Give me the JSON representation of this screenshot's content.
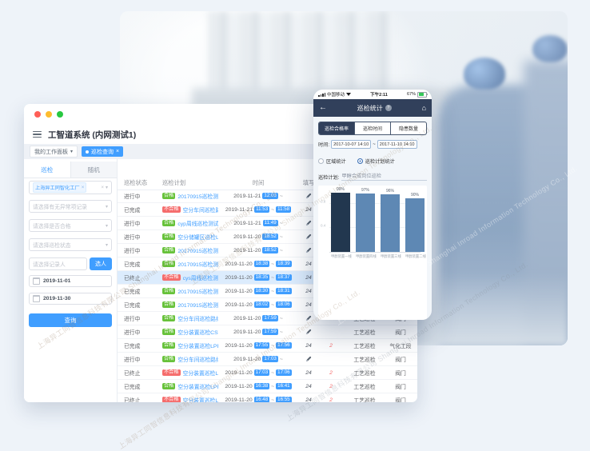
{
  "watermark": {
    "line": "上海异工同智信息科技有限公司 Shanghai Inroad Information Technology Co., Ltd."
  },
  "desktop": {
    "title": "工智道系统 (内网测试1)",
    "tabs": {
      "workspace": "我的工作面板",
      "active": "巡检查询"
    },
    "sidebar": {
      "tabs": [
        {
          "label": "巡检",
          "active": true
        },
        {
          "label": "随机",
          "active": false
        }
      ],
      "factory_tag": "上海异工同智化工厂",
      "selects": [
        "请选择有无异常项记录",
        "请选择是否合格",
        "请选择巡检状态"
      ],
      "person_placeholder": "请选择记录人",
      "person_button": "选人",
      "date_start": "2019-11-01",
      "date_end": "2019-11-30",
      "query_button": "查询"
    },
    "table": {
      "headers": [
        "巡检状态",
        "巡检计划",
        "时间",
        "填写"
      ],
      "rows": [
        {
          "status": "进行中",
          "result": "合格",
          "plan": "20170915巡检测试",
          "date": "2019-11-21",
          "start": "12:03",
          "end": "",
          "filled": "",
          "abnormal": "",
          "type": "工艺巡检",
          "object": "阀门",
          "highlight": false
        },
        {
          "status": "已完成",
          "result": "不合格",
          "plan": "空分车间巡检路线",
          "date": "2019-11-21",
          "start": "11:53",
          "end": "11:58",
          "filled": "24",
          "abnormal": "2",
          "type": "工艺巡检",
          "object": "阀门",
          "highlight": false
        },
        {
          "status": "进行中",
          "result": "合格",
          "plan": "cyp周线巡检测试计划",
          "date": "2019-11-21",
          "start": "11:49",
          "end": "",
          "filled": "",
          "abnormal": "",
          "type": "工艺巡检",
          "object": "阀门",
          "highlight": false
        },
        {
          "status": "进行中",
          "result": "合格",
          "plan": "空分储罐区巡检LPF",
          "date": "2019-11-20",
          "start": "18:52",
          "end": "",
          "filled": "",
          "abnormal": "",
          "type": "工艺巡检",
          "object": "阀门",
          "highlight": false
        },
        {
          "status": "进行中",
          "result": "合格",
          "plan": "20170915巡检测试",
          "date": "2019-11-20",
          "start": "18:52",
          "end": "",
          "filled": "",
          "abnormal": "",
          "type": "工艺巡检",
          "object": "阀门",
          "highlight": false
        },
        {
          "status": "已完成",
          "result": "合格",
          "plan": "20170915巡检测试",
          "date": "2019-11-20",
          "start": "18:38",
          "end": "18:39",
          "filled": "24",
          "abnormal": "",
          "type": "工艺巡检",
          "object": "阀门",
          "highlight": false
        },
        {
          "status": "已终止",
          "result": "不合格",
          "plan": "cys周线巡检测试计划",
          "date": "2019-11-20",
          "start": "18:35",
          "end": "18:37",
          "filled": "24",
          "abnormal": "2",
          "type": "工艺巡检",
          "object": "阀门",
          "highlight": true
        },
        {
          "status": "已完成",
          "result": "合格",
          "plan": "20170915巡检测试",
          "date": "2019-11-20",
          "start": "18:30",
          "end": "18:31",
          "filled": "24",
          "abnormal": "",
          "type": "工艺巡检",
          "object": "阀门",
          "highlight": false
        },
        {
          "status": "已完成",
          "result": "合格",
          "plan": "20170915巡检测试",
          "date": "2019-11-20",
          "start": "18:02",
          "end": "18:06",
          "filled": "24",
          "abnormal": "",
          "type": "工艺巡检",
          "object": "阀门",
          "highlight": false
        },
        {
          "status": "进行中",
          "result": "合格",
          "plan": "空分车间巡检路线",
          "date": "2019-11-20",
          "start": "17:59",
          "end": "",
          "filled": "",
          "abnormal": "",
          "type": "工艺巡检",
          "object": "阀门",
          "highlight": false
        },
        {
          "status": "进行中",
          "result": "合格",
          "plan": "空分装置巡检CSV",
          "date": "2019-11-20",
          "start": "17:59",
          "end": "",
          "filled": "",
          "abnormal": "",
          "type": "工艺巡检",
          "object": "阀门",
          "highlight": false
        },
        {
          "status": "已完成",
          "result": "合格",
          "plan": "空分装置巡检LPF",
          "date": "2019-11-20",
          "start": "17:55",
          "end": "17:56",
          "filled": "24",
          "abnormal": "2",
          "type": "工艺巡检",
          "object": "气化工段",
          "highlight": false
        },
        {
          "status": "进行中",
          "result": "合格",
          "plan": "空分车间巡检路线",
          "date": "2019-11-20",
          "start": "17:03",
          "end": "",
          "filled": "",
          "abnormal": "",
          "type": "工艺巡检",
          "object": "阀门",
          "highlight": false
        },
        {
          "status": "已终止",
          "result": "不合格",
          "plan": "空分装置巡检LPF",
          "date": "2019-11-20",
          "start": "17:03",
          "end": "17:06",
          "filled": "24",
          "abnormal": "2",
          "type": "工艺巡检",
          "object": "阀门",
          "highlight": false
        },
        {
          "status": "已完成",
          "result": "合格",
          "plan": "空分装置巡检LPF",
          "date": "2019-11-20",
          "start": "16:38",
          "end": "16:41",
          "filled": "24",
          "abnormal": "2",
          "type": "工艺巡检",
          "object": "阀门",
          "highlight": false
        },
        {
          "status": "已终止",
          "result": "不合格",
          "plan": "空分装置巡检LPF",
          "date": "2019-11-20",
          "start": "16:48",
          "end": "16:55",
          "filled": "24",
          "abnormal": "2",
          "type": "工艺巡检",
          "object": "阀门",
          "highlight": false
        }
      ]
    }
  },
  "phone": {
    "status": {
      "carrier": "中国移动",
      "time": "下午2:11",
      "battery": "67%"
    },
    "title": "巡检统计",
    "tabs": [
      {
        "label": "巡检合格率",
        "active": true
      },
      {
        "label": "巡检时间",
        "active": false
      },
      {
        "label": "隐患数量",
        "active": false
      }
    ],
    "time_label": "时间:",
    "time_from": "2017-10-07 14:10",
    "time_sep": "~",
    "time_to": "2017-11-10 14:10",
    "radios": [
      {
        "label": "区域统计",
        "selected": false
      },
      {
        "label": "巡检计划统计",
        "selected": true
      }
    ],
    "plan_label": "巡检计划:",
    "plan_value": "甲醇合成岗位巡检"
  },
  "chart_data": {
    "type": "bar",
    "categories": [
      "甲醇装置一线",
      "甲醇装置四线",
      "甲醇装置三线",
      "甲醇装置二线"
    ],
    "values": [
      0.99,
      0.97,
      0.96,
      0.9
    ],
    "bar_labels": [
      "99%",
      "97%",
      "96%",
      "90%"
    ],
    "title": "",
    "xlabel": "",
    "ylabel": "",
    "ylim": [
      0,
      1
    ],
    "yticks": [
      0.4,
      0.8
    ],
    "grid": true,
    "legend": false,
    "colors": {
      "first_bar": "#22374F",
      "other_bars": "#5E88B4"
    }
  }
}
